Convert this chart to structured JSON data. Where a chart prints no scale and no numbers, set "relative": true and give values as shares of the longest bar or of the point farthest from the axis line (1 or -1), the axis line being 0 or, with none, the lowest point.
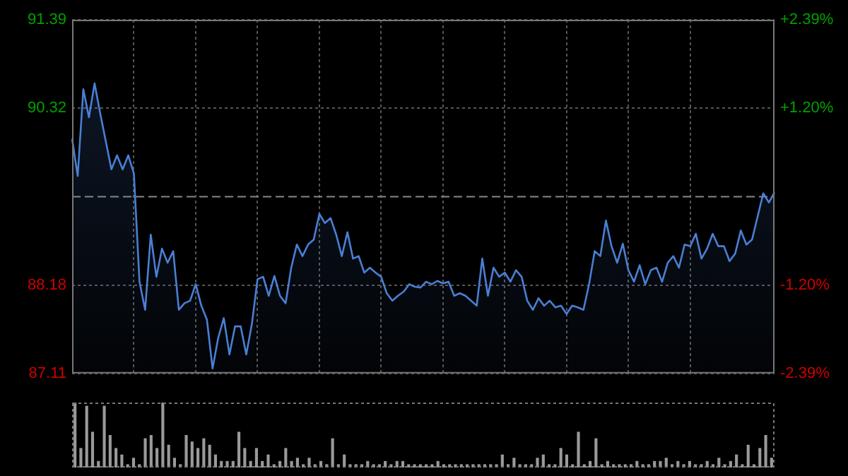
{
  "chart_data": [
    {
      "type": "area",
      "categories": [
        null,
        null,
        null,
        null,
        null,
        null,
        null,
        null,
        null,
        null,
        null,
        null,
        null,
        null,
        null,
        null,
        null,
        null,
        null,
        null,
        null,
        null,
        null,
        null,
        null,
        null,
        null,
        null,
        null,
        null,
        null,
        null,
        null,
        null,
        null,
        null,
        null,
        null,
        null,
        null,
        null,
        null,
        null,
        null,
        null,
        null,
        null,
        null,
        null,
        null,
        null,
        null,
        null,
        null,
        null,
        null,
        null,
        null,
        null,
        null,
        null,
        null,
        null,
        null,
        null,
        null,
        null,
        null,
        null,
        null,
        null,
        null,
        null,
        null,
        null,
        null,
        null,
        null,
        null,
        null,
        null,
        null,
        null,
        null,
        null,
        null,
        null,
        null,
        null,
        null,
        null,
        null,
        null,
        null,
        null,
        null,
        null,
        null,
        null,
        null,
        null,
        null,
        null,
        null,
        null,
        null,
        null,
        null,
        null,
        null,
        null,
        null,
        null,
        null,
        null,
        null,
        null,
        null,
        null,
        null,
        null,
        null,
        null,
        null,
        null,
        null
      ],
      "series": [
        {
          "color": "#4a7fd4",
          "values": [
            89.95,
            89.5,
            90.55,
            90.21,
            90.62,
            90.26,
            89.92,
            89.58,
            89.75,
            89.58,
            89.75,
            89.53,
            88.22,
            87.88,
            88.79,
            88.28,
            88.62,
            88.45,
            88.59,
            87.88,
            87.96,
            87.99,
            88.19,
            87.93,
            87.76,
            87.17,
            87.54,
            87.78,
            87.34,
            87.68,
            87.68,
            87.34,
            87.71,
            88.25,
            88.28,
            88.05,
            88.29,
            88.05,
            87.96,
            88.39,
            88.67,
            88.53,
            88.67,
            88.73,
            89.04,
            88.93,
            88.99,
            88.79,
            88.53,
            88.82,
            88.5,
            88.53,
            88.33,
            88.39,
            88.33,
            88.28,
            88.08,
            87.99,
            88.05,
            88.1,
            88.19,
            88.16,
            88.15,
            88.22,
            88.19,
            88.23,
            88.2,
            88.22,
            88.05,
            88.08,
            88.05,
            87.99,
            87.93,
            88.5,
            88.05,
            88.39,
            88.28,
            88.33,
            88.22,
            88.36,
            88.28,
            87.99,
            87.88,
            88.02,
            87.93,
            87.99,
            87.91,
            87.93,
            87.83,
            87.93,
            87.91,
            87.88,
            88.19,
            88.59,
            88.53,
            88.96,
            88.65,
            88.45,
            88.68,
            88.36,
            88.22,
            88.42,
            88.19,
            88.36,
            88.39,
            88.22,
            88.45,
            88.53,
            88.39,
            88.67,
            88.65,
            88.8,
            88.5,
            88.62,
            88.8,
            88.65,
            88.65,
            88.47,
            88.56,
            88.84,
            88.67,
            88.73,
            89.01,
            89.29,
            89.18,
            89.3
          ]
        }
      ],
      "ylim": [
        87.11,
        91.39
      ],
      "yticks": [
        87.11,
        88.18,
        90.32,
        91.39
      ],
      "y2lim": [
        -2.39,
        2.39
      ],
      "y2ticks": [
        {
          "value": -2.39,
          "label": "-2.39%"
        },
        {
          "value": -1.2,
          "label": "-1.20%"
        },
        {
          "value": 1.2,
          "label": "+1.20%"
        },
        {
          "value": 2.39,
          "label": "+2.39%"
        }
      ],
      "ref_lines": [
        {
          "axis": "y",
          "value": 89.25,
          "color": "#888888",
          "line_style": "dashed"
        }
      ],
      "tick_labels": "y",
      "grid": true,
      "marker": "none",
      "line_style": "solid",
      "legend": false
    },
    {
      "type": "bar",
      "relative": true,
      "color": "#9a9a9a",
      "categories": [
        null,
        null,
        null,
        null,
        null,
        null,
        null,
        null,
        null,
        null,
        null,
        null,
        null,
        null,
        null,
        null,
        null,
        null,
        null,
        null,
        null,
        null,
        null,
        null,
        null,
        null,
        null,
        null,
        null,
        null,
        null,
        null,
        null,
        null,
        null,
        null,
        null,
        null,
        null,
        null,
        null,
        null,
        null,
        null,
        null,
        null,
        null,
        null,
        null,
        null,
        null,
        null,
        null,
        null,
        null,
        null,
        null,
        null,
        null,
        null,
        null,
        null,
        null,
        null,
        null,
        null,
        null,
        null,
        null,
        null,
        null,
        null,
        null,
        null,
        null,
        null,
        null,
        null,
        null,
        null,
        null,
        null,
        null,
        null,
        null,
        null,
        null,
        null,
        null,
        null,
        null,
        null,
        null,
        null,
        null,
        null,
        null,
        null,
        null,
        null,
        null,
        null,
        null,
        null,
        null,
        null,
        null,
        null,
        null,
        null,
        null,
        null,
        null,
        null,
        null,
        null,
        null,
        null,
        null,
        null
      ],
      "values": [
        1.0,
        0.3,
        0.95,
        0.55,
        0.1,
        0.95,
        0.5,
        0.3,
        0.2,
        0.05,
        0.15,
        0.05,
        0.45,
        0.5,
        0.3,
        1.0,
        0.35,
        0.15,
        0.05,
        0.5,
        0.4,
        0.3,
        0.45,
        0.35,
        0.2,
        0.1,
        0.1,
        0.1,
        0.55,
        0.3,
        0.1,
        0.3,
        0.1,
        0.2,
        0.05,
        0.1,
        0.3,
        0.1,
        0.15,
        0.05,
        0.15,
        0.05,
        0.1,
        0.05,
        0.45,
        0.05,
        0.2,
        0.05,
        0.05,
        0.05,
        0.1,
        0.05,
        0.05,
        0.1,
        0.05,
        0.1,
        0.1,
        0.05,
        0.05,
        0.05,
        0.05,
        0.05,
        0.1,
        0.05,
        0.05,
        0.05,
        0.05,
        0.05,
        0.05,
        0.05,
        0.05,
        0.05,
        0.05,
        0.2,
        0.05,
        0.15,
        0.05,
        0.05,
        0.05,
        0.15,
        0.2,
        0.05,
        0.05,
        0.3,
        0.2,
        0.05,
        0.55,
        0.05,
        0.1,
        0.45,
        0.05,
        0.1,
        0.05,
        0.05,
        0.05,
        0.05,
        0.1,
        0.05,
        0.05,
        0.1,
        0.1,
        0.15,
        0.05,
        0.1,
        0.05,
        0.1,
        0.05,
        0.05,
        0.1,
        0.05,
        0.15,
        0.05,
        0.1,
        0.2,
        0.05,
        0.35,
        0.05,
        0.3,
        0.5,
        0.15
      ]
    }
  ]
}
